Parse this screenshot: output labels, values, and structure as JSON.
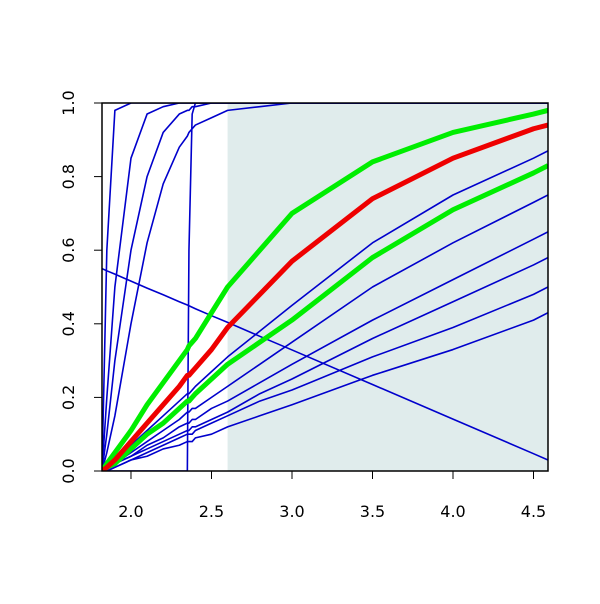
{
  "chart_data": {
    "type": "line",
    "x": [
      1.82,
      1.85,
      1.9,
      2.0,
      2.1,
      2.2,
      2.3,
      2.35,
      2.36,
      2.38,
      2.4,
      2.5,
      2.6,
      2.8,
      3.0,
      3.5,
      4.0,
      4.5,
      4.59
    ],
    "xlim": [
      1.82,
      4.59
    ],
    "ylim": [
      0,
      1
    ],
    "xticks": [
      {
        "value": 2,
        "label": "2.0"
      },
      2.5,
      {
        "value": 3,
        "label": "3.0"
      },
      3.5,
      {
        "value": 4,
        "label": "4.0"
      },
      4.5
    ],
    "yticks": [
      {
        "value": 0,
        "label": "0.0"
      },
      0.2,
      0.4,
      0.6,
      0.8,
      {
        "value": 1,
        "label": "1.0"
      }
    ],
    "shade": {
      "from": 2.6,
      "color": "#e0ecec"
    },
    "series": [
      {
        "color": "#0000cc",
        "values": [
          0,
          0.6,
          0.98,
          1,
          1,
          1,
          1,
          1,
          1,
          1,
          1,
          1,
          1,
          1,
          1,
          1,
          1,
          1,
          1
        ]
      },
      {
        "color": "#0000cc",
        "values": [
          0,
          0.2,
          0.5,
          0.85,
          0.97,
          0.99,
          1,
          1,
          1,
          1,
          1,
          1,
          1,
          1,
          1,
          1,
          1,
          1,
          1
        ]
      },
      {
        "color": "#0000cc",
        "values": [
          0,
          0.1,
          0.3,
          0.6,
          0.8,
          0.92,
          0.97,
          0.98,
          0.98,
          0.99,
          0.99,
          1,
          1,
          1,
          1,
          1,
          1,
          1,
          1
        ]
      },
      {
        "color": "#0000cc",
        "values": [
          0,
          0.05,
          0.15,
          0.4,
          0.62,
          0.78,
          0.88,
          0.91,
          0.92,
          0.93,
          0.94,
          0.96,
          0.98,
          0.99,
          1,
          1,
          1,
          1,
          1
        ]
      },
      {
        "color": "#0000cc",
        "values": [
          0,
          0,
          0,
          0,
          0,
          0,
          0,
          0,
          0.6,
          0.97,
          1,
          1,
          1,
          1,
          1,
          1,
          1,
          1,
          1
        ]
      },
      {
        "color": "#0000cc",
        "values": [
          0.55,
          0.544,
          0.535,
          0.516,
          0.497,
          0.479,
          0.46,
          0.451,
          0.449,
          0.445,
          0.441,
          0.422,
          0.404,
          0.366,
          0.329,
          0.235,
          0.141,
          0.047,
          0.03
        ]
      },
      {
        "color": "#0000cc",
        "values": [
          0,
          0.01,
          0.03,
          0.07,
          0.11,
          0.15,
          0.19,
          0.21,
          0.21,
          0.22,
          0.23,
          0.27,
          0.31,
          0.38,
          0.45,
          0.62,
          0.75,
          0.85,
          0.87
        ]
      },
      {
        "color": "#0000cc",
        "values": [
          0,
          0.01,
          0.02,
          0.05,
          0.08,
          0.11,
          0.14,
          0.16,
          0.16,
          0.17,
          0.17,
          0.2,
          0.23,
          0.29,
          0.35,
          0.5,
          0.62,
          0.73,
          0.75
        ]
      },
      {
        "color": "#0000cc",
        "values": [
          0,
          0.01,
          0.02,
          0.04,
          0.07,
          0.09,
          0.12,
          0.13,
          0.13,
          0.14,
          0.14,
          0.17,
          0.19,
          0.24,
          0.29,
          0.41,
          0.52,
          0.63,
          0.65
        ]
      },
      {
        "color": "#0000cc",
        "values": [
          0,
          0.01,
          0.02,
          0.04,
          0.06,
          0.08,
          0.1,
          0.11,
          0.11,
          0.12,
          0.12,
          0.14,
          0.16,
          0.21,
          0.25,
          0.36,
          0.46,
          0.56,
          0.58
        ]
      },
      {
        "color": "#0000cc",
        "values": [
          0,
          0,
          0.01,
          0.03,
          0.05,
          0.07,
          0.09,
          0.1,
          0.1,
          0.1,
          0.11,
          0.13,
          0.15,
          0.19,
          0.22,
          0.31,
          0.39,
          0.48,
          0.5
        ]
      },
      {
        "color": "#0000cc",
        "values": [
          0,
          0,
          0.01,
          0.03,
          0.04,
          0.06,
          0.07,
          0.08,
          0.08,
          0.08,
          0.09,
          0.1,
          0.12,
          0.15,
          0.18,
          0.26,
          0.33,
          0.41,
          0.43
        ]
      },
      {
        "color": "#00ee00",
        "thick": true,
        "values": [
          0,
          0.02,
          0.05,
          0.11,
          0.18,
          0.24,
          0.3,
          0.33,
          0.34,
          0.35,
          0.36,
          0.43,
          0.5,
          0.6,
          0.7,
          0.84,
          0.92,
          0.97,
          0.98
        ]
      },
      {
        "color": "#00ee00",
        "thick": true,
        "values": [
          0,
          0.01,
          0.02,
          0.06,
          0.1,
          0.13,
          0.17,
          0.19,
          0.19,
          0.2,
          0.21,
          0.25,
          0.29,
          0.35,
          0.41,
          0.58,
          0.71,
          0.81,
          0.83
        ]
      },
      {
        "color": "#ee0000",
        "thick": true,
        "values": [
          0,
          0.01,
          0.03,
          0.08,
          0.13,
          0.18,
          0.23,
          0.26,
          0.26,
          0.27,
          0.28,
          0.33,
          0.39,
          0.48,
          0.57,
          0.74,
          0.85,
          0.93,
          0.94
        ]
      }
    ]
  }
}
